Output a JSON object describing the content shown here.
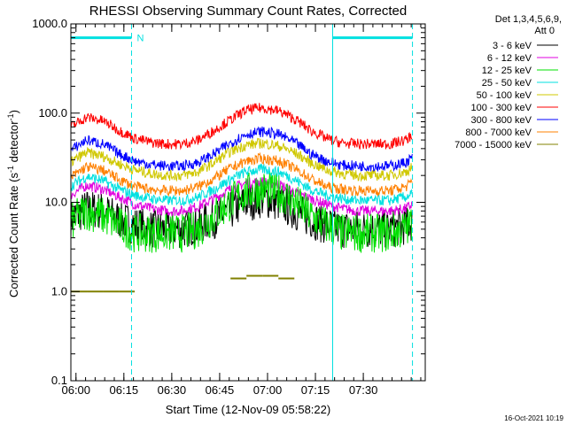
{
  "chart_data": {
    "type": "line",
    "title": "RHESSI Observing Summary Count Rates, Corrected",
    "xlabel": "Start Time (12-Nov-09 05:58:22)",
    "ylabel_parts": [
      "Corrected Count Rate (s",
      "-1",
      " detector",
      "-1",
      ")"
    ],
    "yscale": "log",
    "ylim": [
      0.1,
      1000
    ],
    "xlim_minutes": [
      0,
      111
    ],
    "x_ticks": [
      {
        "label": "06:00",
        "minutes": 1.6
      },
      {
        "label": "06:15",
        "minutes": 16.6
      },
      {
        "label": "06:30",
        "minutes": 31.6
      },
      {
        "label": "06:45",
        "minutes": 46.6
      },
      {
        "label": "07:00",
        "minutes": 61.6
      },
      {
        "label": "07:15",
        "minutes": 76.6
      },
      {
        "label": "07:30",
        "minutes": 91.6
      }
    ],
    "y_ticks": [
      {
        "label": "0.1",
        "value": 0.1
      },
      {
        "label": "1.0",
        "value": 1
      },
      {
        "label": "10.0",
        "value": 10
      },
      {
        "label": "100.0",
        "value": 100
      },
      {
        "label": "1000.0",
        "value": 1000
      }
    ],
    "legend_header": [
      "Det 1,3,4,5,6,9,",
      "Att 0"
    ],
    "legend_position": "right",
    "time_minutes": [
      0,
      5,
      10,
      15,
      20,
      25,
      30,
      35,
      40,
      45,
      50,
      55,
      60,
      65,
      70,
      75,
      80,
      85,
      90,
      95,
      100,
      105,
      107
    ],
    "series": [
      {
        "name": "3 - 6 keV",
        "color": "#000000",
        "values": [
          6.5,
          8.5,
          8,
          6.5,
          5.5,
          5,
          5,
          5,
          5.5,
          6.5,
          8,
          10,
          11,
          10,
          8,
          6.5,
          5.5,
          5,
          5,
          5,
          5,
          5.5,
          6
        ]
      },
      {
        "name": "6 - 12 keV",
        "color": "#e000e0",
        "values": [
          12,
          15.5,
          14,
          11.5,
          9.5,
          8.5,
          8,
          8,
          9,
          11,
          14,
          16.5,
          17,
          16,
          13,
          11,
          9.5,
          8.5,
          8,
          8,
          8,
          8.5,
          9.5
        ]
      },
      {
        "name": "12 - 25 keV",
        "color": "#00e000",
        "values": [
          6,
          8,
          7,
          5.5,
          4.5,
          4.5,
          4.5,
          4.5,
          5,
          7,
          10,
          13,
          14,
          13,
          10,
          7,
          5.5,
          4.5,
          4.5,
          4.5,
          4.5,
          5,
          6
        ]
      },
      {
        "name": "25 - 50 keV",
        "color": "#00e0e0",
        "values": [
          15,
          19.5,
          17.5,
          14,
          12,
          11,
          10.5,
          10.5,
          11.5,
          14,
          18,
          22,
          23.5,
          22,
          18,
          14,
          12,
          11,
          10.5,
          10.5,
          10.5,
          11.5,
          12.5
        ]
      },
      {
        "name": "50 - 100 keV",
        "color": "#d0c800",
        "values": [
          28,
          36,
          33,
          27,
          23,
          21,
          20,
          20,
          22,
          28,
          37,
          44,
          46,
          43,
          36,
          28,
          23,
          21,
          20,
          20,
          20,
          22,
          25
        ]
      },
      {
        "name": "100 - 300 keV",
        "color": "#ff0000",
        "values": [
          70,
          90,
          82,
          64,
          52,
          47,
          45,
          45,
          50,
          64,
          84,
          108,
          115,
          106,
          86,
          64,
          52,
          46,
          45,
          45,
          45,
          50,
          57
        ]
      },
      {
        "name": "300 - 800 keV",
        "color": "#0000ff",
        "values": [
          38,
          50,
          45,
          35,
          29,
          26.5,
          25.5,
          25.5,
          28,
          35,
          46,
          58,
          62,
          58,
          47,
          35,
          29,
          26,
          25.5,
          25.5,
          25.5,
          28,
          32
        ]
      },
      {
        "name": "800 - 7000 keV",
        "color": "#ff8000",
        "values": [
          19,
          25,
          23,
          18,
          15,
          14,
          13.5,
          13.5,
          15,
          18.5,
          24,
          29,
          31,
          29,
          24,
          18.5,
          15,
          14,
          13.5,
          13.5,
          13.5,
          15,
          17
        ]
      },
      {
        "name": "7000 - 15000 keV",
        "color": "#808000",
        "values": [
          1,
          1,
          1,
          1,
          null,
          null,
          null,
          null,
          null,
          null,
          1.4,
          1.5,
          1.5,
          1.4,
          null,
          null,
          null,
          null,
          null,
          null,
          null,
          null,
          null
        ]
      }
    ],
    "annotations": [
      {
        "type": "line",
        "label": "N",
        "color": "#00e0e0",
        "y": 700,
        "x_start": 0,
        "x_end": 19
      },
      {
        "type": "line",
        "label": "",
        "color": "#00e0e0",
        "y": 700,
        "x_start": 82,
        "x_end": 107
      }
    ],
    "vertical_markers": [
      {
        "color": "#00e0e0",
        "minutes": 0,
        "style": "solid"
      },
      {
        "color": "#00e0e0",
        "minutes": 19,
        "style": "dashed"
      },
      {
        "color": "#00e0e0",
        "minutes": 82,
        "style": "solid"
      },
      {
        "color": "#00e0e0",
        "minutes": 107,
        "style": "dashed"
      }
    ]
  },
  "footer_timestamp": "16-Oct-2021 10:19"
}
